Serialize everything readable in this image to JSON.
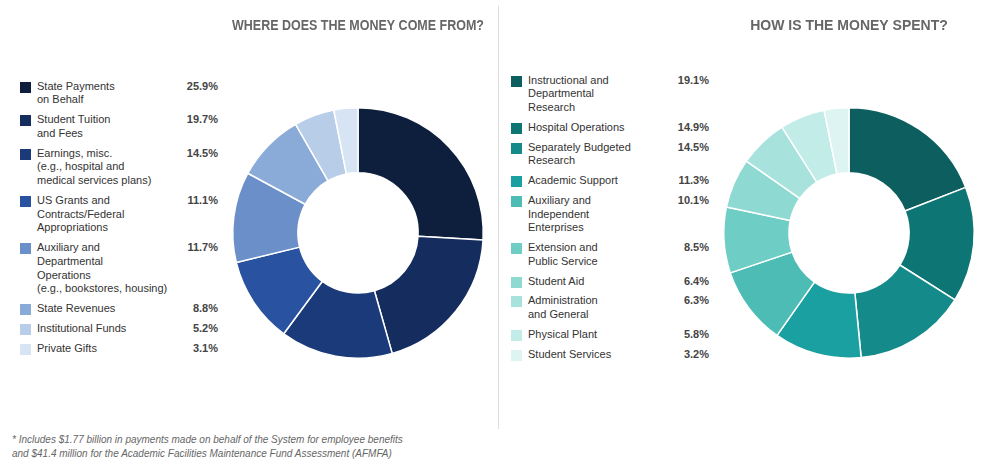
{
  "chart_data": [
    {
      "type": "doughnut",
      "title": "WHERE DOES THE MONEY COME FROM?",
      "categories": [
        "State Payments\non Behalf",
        "Student Tuition\nand Fees",
        "Earnings, misc.\n(e.g., hospital and\nmedical services plans)",
        "US Grants and\nContracts/Federal\nAppropriations",
        "Auxiliary and\nDepartmental\nOperations\n(e.g., bookstores, housing)",
        "State Revenues",
        "Institutional Funds",
        "Private Gifts"
      ],
      "values": [
        25.9,
        19.7,
        14.5,
        11.1,
        11.7,
        8.8,
        5.2,
        3.1
      ],
      "value_labels": [
        "25.9%",
        "19.7%",
        "14.5%",
        "11.1%",
        "11.7%",
        "8.8%",
        "5.2%",
        "3.1%"
      ],
      "colors": [
        "#0d1f3c",
        "#152d5e",
        "#1a3a7a",
        "#2952a0",
        "#6b8fc9",
        "#8aaad8",
        "#b8cde8",
        "#d6e4f4"
      ],
      "legend": "left",
      "annotations": [
        "* Includes $1.77 billion in payments made on behalf of the System for employee benefits\nand $41.4 million for the Academic Facilities Maintenance Fund Assessment (AFMFA)"
      ]
    },
    {
      "type": "doughnut",
      "title": "HOW IS THE MONEY SPENT?",
      "categories": [
        "Instructional and\nDepartmental\nResearch",
        "Hospital Operations",
        "Separately Budgeted\nResearch",
        "Academic Support",
        "Auxiliary and\nIndependent\nEnterprises",
        "Extension and\nPublic Service",
        "Student Aid",
        "Administration\nand General",
        "Physical Plant",
        "Student Services"
      ],
      "values": [
        19.1,
        14.9,
        14.5,
        11.3,
        10.1,
        8.5,
        6.4,
        6.3,
        5.8,
        3.2
      ],
      "value_labels": [
        "19.1%",
        "14.9%",
        "14.5%",
        "11.3%",
        "10.1%",
        "8.5%",
        "6.4%",
        "6.3%",
        "5.8%",
        "3.2%"
      ],
      "colors": [
        "#0d5e5e",
        "#0e7575",
        "#148a8a",
        "#1aa0a0",
        "#4dbcb5",
        "#6ecdc5",
        "#8ed9d2",
        "#a8e2dc",
        "#c2ece8",
        "#ddf4f2"
      ],
      "legend": "left"
    }
  ]
}
